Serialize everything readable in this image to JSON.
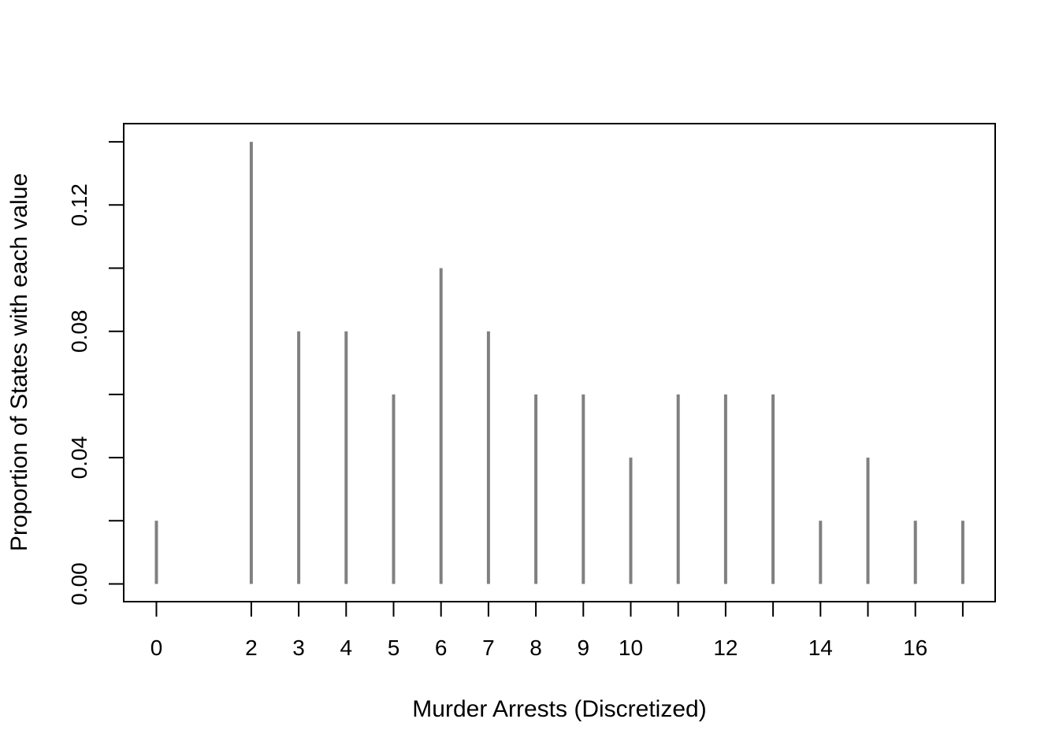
{
  "chart_data": {
    "type": "bar",
    "style": "vertical spikes (frequency table plot)",
    "x": [
      0,
      2,
      3,
      4,
      5,
      6,
      7,
      8,
      9,
      10,
      11,
      12,
      13,
      14,
      15,
      16,
      17
    ],
    "values": [
      0.02,
      0.14,
      0.08,
      0.08,
      0.06,
      0.1,
      0.08,
      0.06,
      0.06,
      0.04,
      0.06,
      0.06,
      0.06,
      0.02,
      0.04,
      0.02,
      0.02
    ],
    "x_tick_labels": [
      "0",
      "2",
      "3",
      "4",
      "5",
      "6",
      "7",
      "8",
      "9",
      "10",
      "",
      "12",
      "",
      "14",
      "",
      "16",
      ""
    ],
    "y_ticks": [
      0.0,
      0.02,
      0.04,
      0.06,
      0.08,
      0.1,
      0.12,
      0.14
    ],
    "y_tick_labels": [
      "0.00",
      "",
      "0.04",
      "",
      "0.08",
      "",
      "0.12",
      ""
    ],
    "xlabel": "Murder Arrests (Discretized)",
    "ylabel": "Proportion of States with each value",
    "xlim": [
      -0.68,
      17.68
    ],
    "ylim": [
      0,
      0.14
    ],
    "grid": false,
    "bar_color": "#808080"
  }
}
